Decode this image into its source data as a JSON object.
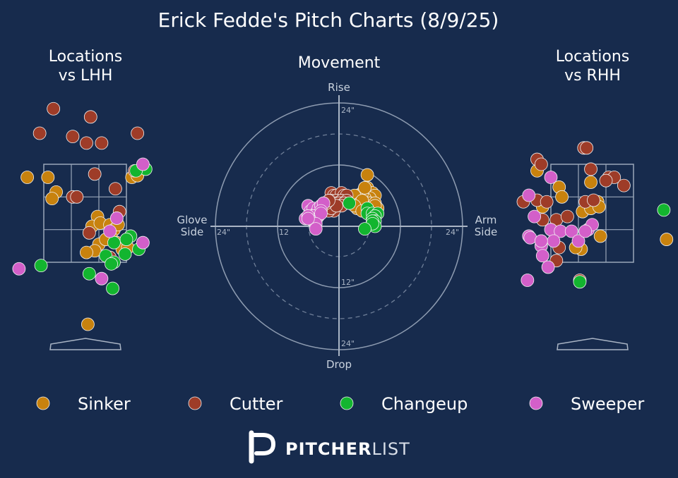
{
  "title": "Erick Fedde's Pitch Charts (8/9/25)",
  "panels": {
    "lhh": {
      "title_line1": "Locations",
      "title_line2": "vs LHH"
    },
    "movement": {
      "title": "Movement",
      "rise": "Rise",
      "drop": "Drop",
      "glove_line1": "Glove",
      "glove_line2": "Side",
      "arm_line1": "Arm",
      "arm_line2": "Side",
      "ring_top_24": "24\"",
      "ring_bottom_12": "12\"",
      "ring_bottom_24": "24\"",
      "ring_left_24": "24\"",
      "ring_left_12": "12",
      "ring_right_24": "24\""
    },
    "rhh": {
      "title_line1": "Locations",
      "title_line2": "vs RHH"
    }
  },
  "legend": [
    {
      "label": "Sinker",
      "color": "#c8820e"
    },
    {
      "label": "Cutter",
      "color": "#9e3c28"
    },
    {
      "label": "Changeup",
      "color": "#13b52f"
    },
    {
      "label": "Sweeper",
      "color": "#d35fc9"
    }
  ],
  "logo": {
    "bold": "PITCHER",
    "light": "LIST",
    "icon": "pitcherlist-p-icon"
  },
  "chart_data": [
    {
      "type": "scatter",
      "name": "Locations vs LHH",
      "x_units": "zone columns (0-3 = strike zone width)",
      "y_units": "zone rows (0-3 = strike zone height, 0 top)",
      "points": {
        "Sinker": [
          [
            -0.6,
            0.4
          ],
          [
            0.15,
            0.4
          ],
          [
            0.45,
            0.85
          ],
          [
            0.3,
            1.05
          ],
          [
            1.95,
            1.6
          ],
          [
            1.75,
            1.9
          ],
          [
            2.05,
            1.8
          ],
          [
            2.4,
            1.85
          ],
          [
            2.55,
            2.0
          ],
          [
            2.7,
            1.85
          ],
          [
            2.45,
            2.25
          ],
          [
            2.65,
            2.4
          ],
          [
            2.0,
            2.45
          ],
          [
            2.25,
            2.3
          ],
          [
            1.85,
            2.65
          ],
          [
            1.55,
            2.7
          ],
          [
            2.85,
            2.6
          ],
          [
            3.05,
            2.55
          ],
          [
            3.2,
            0.4
          ],
          [
            3.4,
            0.35
          ],
          [
            1.6,
            4.9
          ]
        ],
        "Cutter": [
          [
            0.35,
            -1.7
          ],
          [
            1.7,
            -1.45
          ],
          [
            -0.15,
            -0.95
          ],
          [
            1.05,
            -0.85
          ],
          [
            1.55,
            -0.65
          ],
          [
            2.1,
            -0.65
          ],
          [
            3.4,
            -0.95
          ],
          [
            1.85,
            0.3
          ],
          [
            3.3,
            0.2
          ],
          [
            2.6,
            0.75
          ],
          [
            1.05,
            1.0
          ],
          [
            1.2,
            1.0
          ],
          [
            2.75,
            1.45
          ],
          [
            1.65,
            2.1
          ],
          [
            2.4,
            2.85
          ]
        ],
        "Changeup": [
          [
            3.7,
            0.15
          ],
          [
            3.35,
            0.2
          ],
          [
            2.55,
            2.4
          ],
          [
            3.15,
            2.2
          ],
          [
            3.0,
            2.3
          ],
          [
            2.25,
            2.8
          ],
          [
            2.95,
            2.75
          ],
          [
            3.45,
            2.6
          ],
          [
            2.55,
            3.0
          ],
          [
            2.45,
            3.05
          ],
          [
            -0.1,
            3.1
          ],
          [
            1.65,
            3.35
          ],
          [
            2.5,
            3.8
          ]
        ],
        "Sweeper": [
          [
            3.6,
            0.0
          ],
          [
            2.65,
            1.65
          ],
          [
            2.4,
            2.05
          ],
          [
            3.6,
            2.4
          ],
          [
            -0.9,
            3.2
          ],
          [
            2.1,
            3.5
          ]
        ]
      }
    },
    {
      "type": "scatter",
      "name": "Movement",
      "x_units": "horizontal break (inches, glove side negative)",
      "y_units": "induced vertical break (inches)",
      "points": {
        "Sinker": [
          [
            5.5,
            7.5
          ],
          [
            6.5,
            6.5
          ],
          [
            7.0,
            6.0
          ],
          [
            6.0,
            5.5
          ],
          [
            5.0,
            5.5
          ],
          [
            4.0,
            5.0
          ],
          [
            4.5,
            6.5
          ],
          [
            3.5,
            6.0
          ],
          [
            3.0,
            6.0
          ],
          [
            6.0,
            4.5
          ],
          [
            7.0,
            4.5
          ],
          [
            7.5,
            3.5
          ],
          [
            5.5,
            3.5
          ],
          [
            4.5,
            3.5
          ],
          [
            3.5,
            3.5
          ],
          [
            4.0,
            4.5
          ],
          [
            4.5,
            5.0
          ],
          [
            3.0,
            4.0
          ],
          [
            6.0,
            3.0
          ],
          [
            5.5,
            10.0
          ],
          [
            5.0,
            7.5
          ],
          [
            7.0,
            4.0
          ],
          [
            4.5,
            3.0
          ]
        ],
        "Cutter": [
          [
            -1.5,
            6.5
          ],
          [
            -1.0,
            6.0
          ],
          [
            -0.5,
            6.0
          ],
          [
            0.5,
            6.5
          ],
          [
            1.0,
            6.0
          ],
          [
            1.5,
            6.0
          ],
          [
            -2.0,
            5.0
          ],
          [
            -1.5,
            5.0
          ],
          [
            -0.5,
            5.0
          ],
          [
            0.5,
            5.0
          ],
          [
            1.5,
            5.0
          ],
          [
            -2.5,
            4.5
          ],
          [
            -1.0,
            4.5
          ],
          [
            0.0,
            4.5
          ],
          [
            1.0,
            4.5
          ],
          [
            -1.5,
            4.0
          ],
          [
            0.5,
            4.0
          ],
          [
            -2.0,
            4.0
          ],
          [
            -2.5,
            3.5
          ],
          [
            -1.0,
            3.0
          ],
          [
            -2.0,
            3.0
          ],
          [
            -1.5,
            3.5
          ],
          [
            -0.5,
            4.0
          ],
          [
            -2.5,
            4.5
          ],
          [
            -2.0,
            5.0
          ]
        ],
        "Changeup": [
          [
            2.0,
            4.5
          ],
          [
            5.5,
            3.5
          ],
          [
            5.5,
            2.5
          ],
          [
            6.5,
            2.5
          ],
          [
            7.5,
            2.5
          ],
          [
            7.0,
            2.0
          ],
          [
            6.5,
            1.5
          ],
          [
            7.0,
            1.0
          ],
          [
            6.5,
            1.0
          ],
          [
            7.0,
            0.0
          ],
          [
            6.5,
            0.5
          ],
          [
            5.0,
            -0.5
          ]
        ],
        "Sweeper": [
          [
            -6.0,
            4.0
          ],
          [
            -5.5,
            3.0
          ],
          [
            -5.0,
            3.5
          ],
          [
            -4.5,
            2.5
          ],
          [
            -4.0,
            3.5
          ],
          [
            -3.5,
            4.0
          ],
          [
            -3.0,
            4.5
          ],
          [
            -3.5,
            3.0
          ],
          [
            -4.0,
            2.0
          ],
          [
            -5.0,
            2.0
          ],
          [
            -4.5,
            1.0
          ],
          [
            -5.0,
            1.0
          ],
          [
            -5.5,
            1.5
          ],
          [
            -6.5,
            1.5
          ],
          [
            -6.0,
            2.0
          ],
          [
            -3.5,
            2.5
          ],
          [
            -4.5,
            0.5
          ],
          [
            -4.5,
            -0.5
          ],
          [
            -6.0,
            1.5
          ]
        ]
      }
    },
    {
      "type": "scatter",
      "name": "Locations vs RHH",
      "x_units": "zone columns (0-3 = strike zone width)",
      "y_units": "zone rows (0-3 = strike zone height, 0 top)",
      "points": {
        "Sinker": [
          [
            -0.5,
            0.2
          ],
          [
            1.45,
            0.55
          ],
          [
            0.3,
            0.7
          ],
          [
            0.4,
            1.0
          ],
          [
            1.15,
            1.45
          ],
          [
            1.45,
            1.35
          ],
          [
            1.7,
            1.15
          ],
          [
            1.75,
            1.3
          ],
          [
            1.8,
            2.2
          ],
          [
            1.1,
            2.6
          ],
          [
            -0.3,
            1.3
          ],
          [
            4.2,
            2.3
          ],
          [
            0.9,
            2.55
          ]
        ],
        "Cutter": [
          [
            -0.5,
            -0.15
          ],
          [
            -0.35,
            0.0
          ],
          [
            1.2,
            -0.5
          ],
          [
            1.3,
            -0.5
          ],
          [
            1.45,
            0.15
          ],
          [
            2.1,
            0.4
          ],
          [
            2.3,
            0.4
          ],
          [
            2.0,
            0.5
          ],
          [
            2.65,
            0.65
          ],
          [
            -0.5,
            1.1
          ],
          [
            -0.15,
            1.15
          ],
          [
            1.25,
            1.15
          ],
          [
            1.55,
            1.1
          ],
          [
            -0.3,
            1.7
          ],
          [
            0.2,
            1.7
          ],
          [
            0.6,
            1.6
          ],
          [
            0.3,
            2.55
          ],
          [
            0.2,
            2.95
          ],
          [
            1.05,
            3.55
          ],
          [
            -1.0,
            1.15
          ]
        ],
        "Changeup": [
          [
            4.1,
            1.4
          ],
          [
            1.05,
            3.6
          ]
        ],
        "Sweeper": [
          [
            0.0,
            0.4
          ],
          [
            -0.8,
            0.95
          ],
          [
            -0.8,
            2.2
          ],
          [
            -0.6,
            1.6
          ],
          [
            0.0,
            2.0
          ],
          [
            0.35,
            2.05
          ],
          [
            0.75,
            2.05
          ],
          [
            1.0,
            2.35
          ],
          [
            1.35,
            2.0
          ],
          [
            1.5,
            1.85
          ],
          [
            -0.75,
            2.25
          ],
          [
            -0.35,
            2.5
          ],
          [
            -0.35,
            2.35
          ],
          [
            0.1,
            2.35
          ],
          [
            -0.3,
            2.8
          ],
          [
            -0.85,
            3.55
          ],
          [
            -0.1,
            3.15
          ],
          [
            1.25,
            2.05
          ],
          [
            -0.35,
            2.35
          ]
        ]
      }
    }
  ]
}
